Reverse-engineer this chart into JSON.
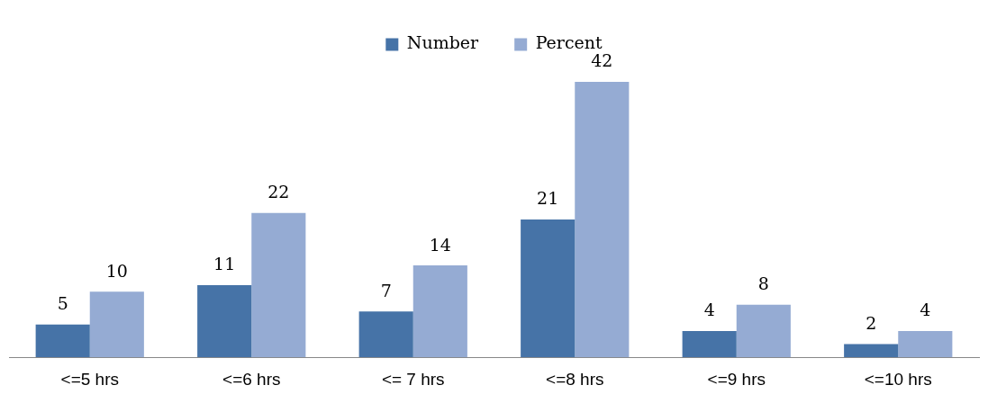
{
  "chart_data": {
    "type": "bar",
    "categories": [
      "<=5 hrs",
      "<=6 hrs",
      "<= 7 hrs",
      "<=8 hrs",
      "<=9 hrs",
      "<=10 hrs"
    ],
    "series": [
      {
        "name": "Number",
        "color": "#4673a7",
        "values": [
          5,
          11,
          7,
          21,
          4,
          2
        ]
      },
      {
        "name": "Percent",
        "color": "#95abd3",
        "values": [
          10,
          22,
          14,
          42,
          8,
          4
        ]
      }
    ],
    "data_labels": true,
    "legend": "top",
    "grid": false
  }
}
